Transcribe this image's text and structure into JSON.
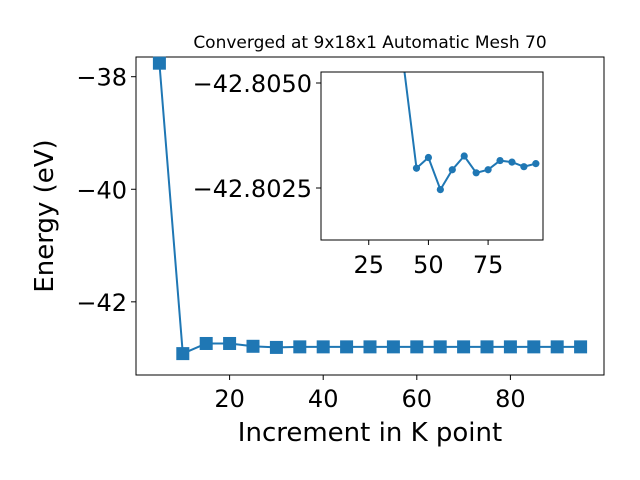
{
  "chart_data": [
    {
      "type": "line",
      "title": "Converged at 9x18x1 Automatic Mesh 70",
      "xlabel": "Increment in K point",
      "ylabel": "Energy (eV)",
      "xlim": [
        0,
        100
      ],
      "ylim": [
        -43.3,
        -37.65
      ],
      "x_ticks": [
        20,
        40,
        60,
        80
      ],
      "x_tick_labels": [
        "20",
        "40",
        "60",
        "80"
      ],
      "y_ticks": [
        -42,
        -40,
        -38
      ],
      "y_tick_labels": [
        "−42",
        "−40",
        "−38"
      ],
      "grid": false,
      "marker": "square",
      "color": "#1f77b4",
      "series": [
        {
          "x": [
            5,
            10,
            15,
            20,
            25,
            30,
            35,
            40,
            45,
            50,
            55,
            60,
            65,
            70,
            75,
            80,
            85,
            90,
            95
          ],
          "y": [
            -37.76,
            -42.92,
            -42.74,
            -42.74,
            -42.79,
            -42.81,
            -42.8,
            -42.8,
            -42.8,
            -42.8,
            -42.8,
            -42.8,
            -42.8,
            -42.8,
            -42.8,
            -42.8,
            -42.8,
            -42.8,
            -42.8
          ]
        }
      ]
    },
    {
      "type": "line",
      "title": "",
      "xlabel": "",
      "ylabel": "",
      "inset": true,
      "xlim": [
        5,
        98
      ],
      "ylim": [
        -42.8035,
        -42.8046
      ],
      "x_ticks": [
        25,
        50,
        75
      ],
      "x_tick_labels": [
        "25",
        "50",
        "75"
      ],
      "y_ticks": [
        -42.8025,
        -42.805
      ],
      "y_tick_labels": [
        "−42.8025",
        "−42.8050"
      ],
      "grid": false,
      "marker": "circle",
      "color": "#1f77b4",
      "series": [
        {
          "x": [
            40,
            45,
            50,
            55,
            60,
            65,
            70,
            75,
            80,
            85,
            90,
            95
          ],
          "y": [
            -42.8046,
            -42.80397,
            -42.80404,
            -42.80383,
            -42.80396,
            -42.80405,
            -42.80394,
            -42.80396,
            -42.80402,
            -42.80401,
            -42.80398,
            -42.804
          ]
        }
      ]
    }
  ]
}
